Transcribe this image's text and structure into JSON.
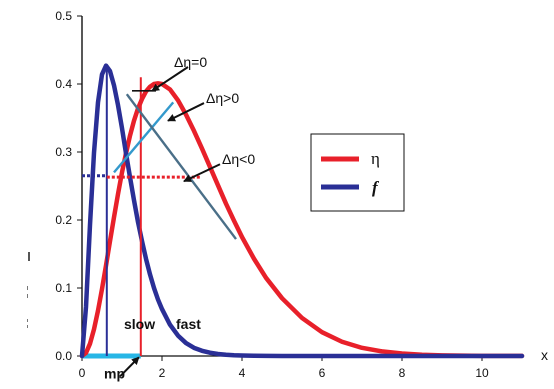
{
  "chart_data": {
    "type": "line",
    "xlabel": "x",
    "ylabel": "",
    "xlim": [
      0,
      11
    ],
    "ylim": [
      0,
      0.5
    ],
    "x_ticks": [
      0,
      2,
      4,
      6,
      8,
      10
    ],
    "y_ticks": [
      0,
      0.1,
      0.2,
      0.3,
      0.4,
      0.5
    ],
    "y_tick_labels": [
      "0.0",
      "0.1",
      "0.2",
      "0.3",
      "0.4",
      "0.5"
    ],
    "grid": false,
    "legend_position": "right",
    "series": [
      {
        "name": "η",
        "color": "#e8202a",
        "x": [
          0,
          0.1,
          0.2,
          0.3,
          0.4,
          0.5,
          0.6,
          0.7,
          0.8,
          0.9,
          1.0,
          1.1,
          1.2,
          1.3,
          1.4,
          1.5,
          1.6,
          1.7,
          1.8,
          1.9,
          2.0,
          2.2,
          2.4,
          2.6,
          2.8,
          3.0,
          3.2,
          3.4,
          3.6,
          3.8,
          4.0,
          4.3,
          4.6,
          5.0,
          5.5,
          6.0,
          6.5,
          7.0,
          7.5,
          8.0,
          8.5,
          9.0,
          9.5,
          10.0,
          10.5,
          11.0
        ],
        "y": [
          0,
          0.0046,
          0.0181,
          0.0393,
          0.0667,
          0.0985,
          0.133,
          0.169,
          0.204,
          0.238,
          0.27,
          0.298,
          0.324,
          0.346,
          0.364,
          0.378,
          0.389,
          0.396,
          0.4,
          0.401,
          0.4,
          0.392,
          0.376,
          0.355,
          0.331,
          0.305,
          0.278,
          0.251,
          0.224,
          0.199,
          0.175,
          0.143,
          0.115,
          0.085,
          0.056,
          0.035,
          0.021,
          0.012,
          0.0068,
          0.0037,
          0.0019,
          0.001,
          0.0005,
          0.0002,
          0.0001,
          0.0001
        ]
      },
      {
        "name": "f",
        "color": "#2a2f96",
        "x": [
          0,
          0.1,
          0.2,
          0.3,
          0.4,
          0.5,
          0.6,
          0.7,
          0.8,
          0.9,
          1.0,
          1.1,
          1.2,
          1.3,
          1.4,
          1.5,
          1.6,
          1.7,
          1.8,
          1.9,
          2.0,
          2.2,
          2.4,
          2.6,
          2.8,
          3.0,
          3.2,
          3.4,
          3.6,
          3.8,
          4.0,
          4.3,
          4.6,
          5.0,
          5.5,
          6.0,
          6.5,
          7.0,
          7.5,
          8.0,
          8.5,
          9.0,
          9.5,
          10.0,
          10.5,
          11.0
        ],
        "y": [
          0,
          0.0722,
          0.193,
          0.299,
          0.373,
          0.414,
          0.427,
          0.419,
          0.398,
          0.369,
          0.335,
          0.298,
          0.263,
          0.229,
          0.197,
          0.169,
          0.143,
          0.12,
          0.1,
          0.083,
          0.069,
          0.046,
          0.03,
          0.019,
          0.012,
          0.0077,
          0.0048,
          0.003,
          0.0018,
          0.0011,
          0.0007,
          0.0003,
          0.0001,
          0,
          0,
          0,
          0,
          0,
          0,
          0,
          0,
          0,
          0,
          0,
          0,
          0
        ]
      }
    ],
    "reference_lines": [
      {
        "kind": "vertical",
        "x": 0.62,
        "y_top": 0.427,
        "color": "#2a2f96"
      },
      {
        "kind": "vertical",
        "x": 1.47,
        "y_top": 0.41,
        "color": "#e8202a"
      },
      {
        "kind": "dotted-horizontal-blue",
        "x1": 0,
        "x2": 0.62,
        "y": 0.265,
        "color": "#2a2f96"
      },
      {
        "kind": "dotted-horizontal-red",
        "x1": 0.62,
        "x2": 2.95,
        "y": 0.263,
        "color": "#e8202a"
      },
      {
        "kind": "segment",
        "x1": 0.8,
        "y1": 0.27,
        "x2": 2.28,
        "y2": 0.373,
        "color": "#3399cc"
      },
      {
        "kind": "segment",
        "x1": 1.12,
        "y1": 0.385,
        "x2": 3.85,
        "y2": 0.172,
        "color": "#4a6f88"
      },
      {
        "kind": "segment",
        "x1": 1.25,
        "y1": 0.39,
        "x2": 1.85,
        "y2": 0.39,
        "color": "#111111"
      },
      {
        "kind": "axis-highlight",
        "x1": 0,
        "x2": 1.47,
        "y": 0,
        "color": "#27b6e6"
      }
    ],
    "annotations": [
      {
        "text": "Δη=0",
        "x": 2.3,
        "y": 0.425
      },
      {
        "text": "Δη>0",
        "x": 3.1,
        "y": 0.372
      },
      {
        "text": "Δη<0",
        "x": 3.5,
        "y": 0.282
      },
      {
        "text": "slow",
        "x": 1.05,
        "y": 0.04
      },
      {
        "text": "fast",
        "x": 2.35,
        "y": 0.04
      },
      {
        "text": "mp",
        "x": 0.55,
        "y": -0.033
      }
    ]
  }
}
